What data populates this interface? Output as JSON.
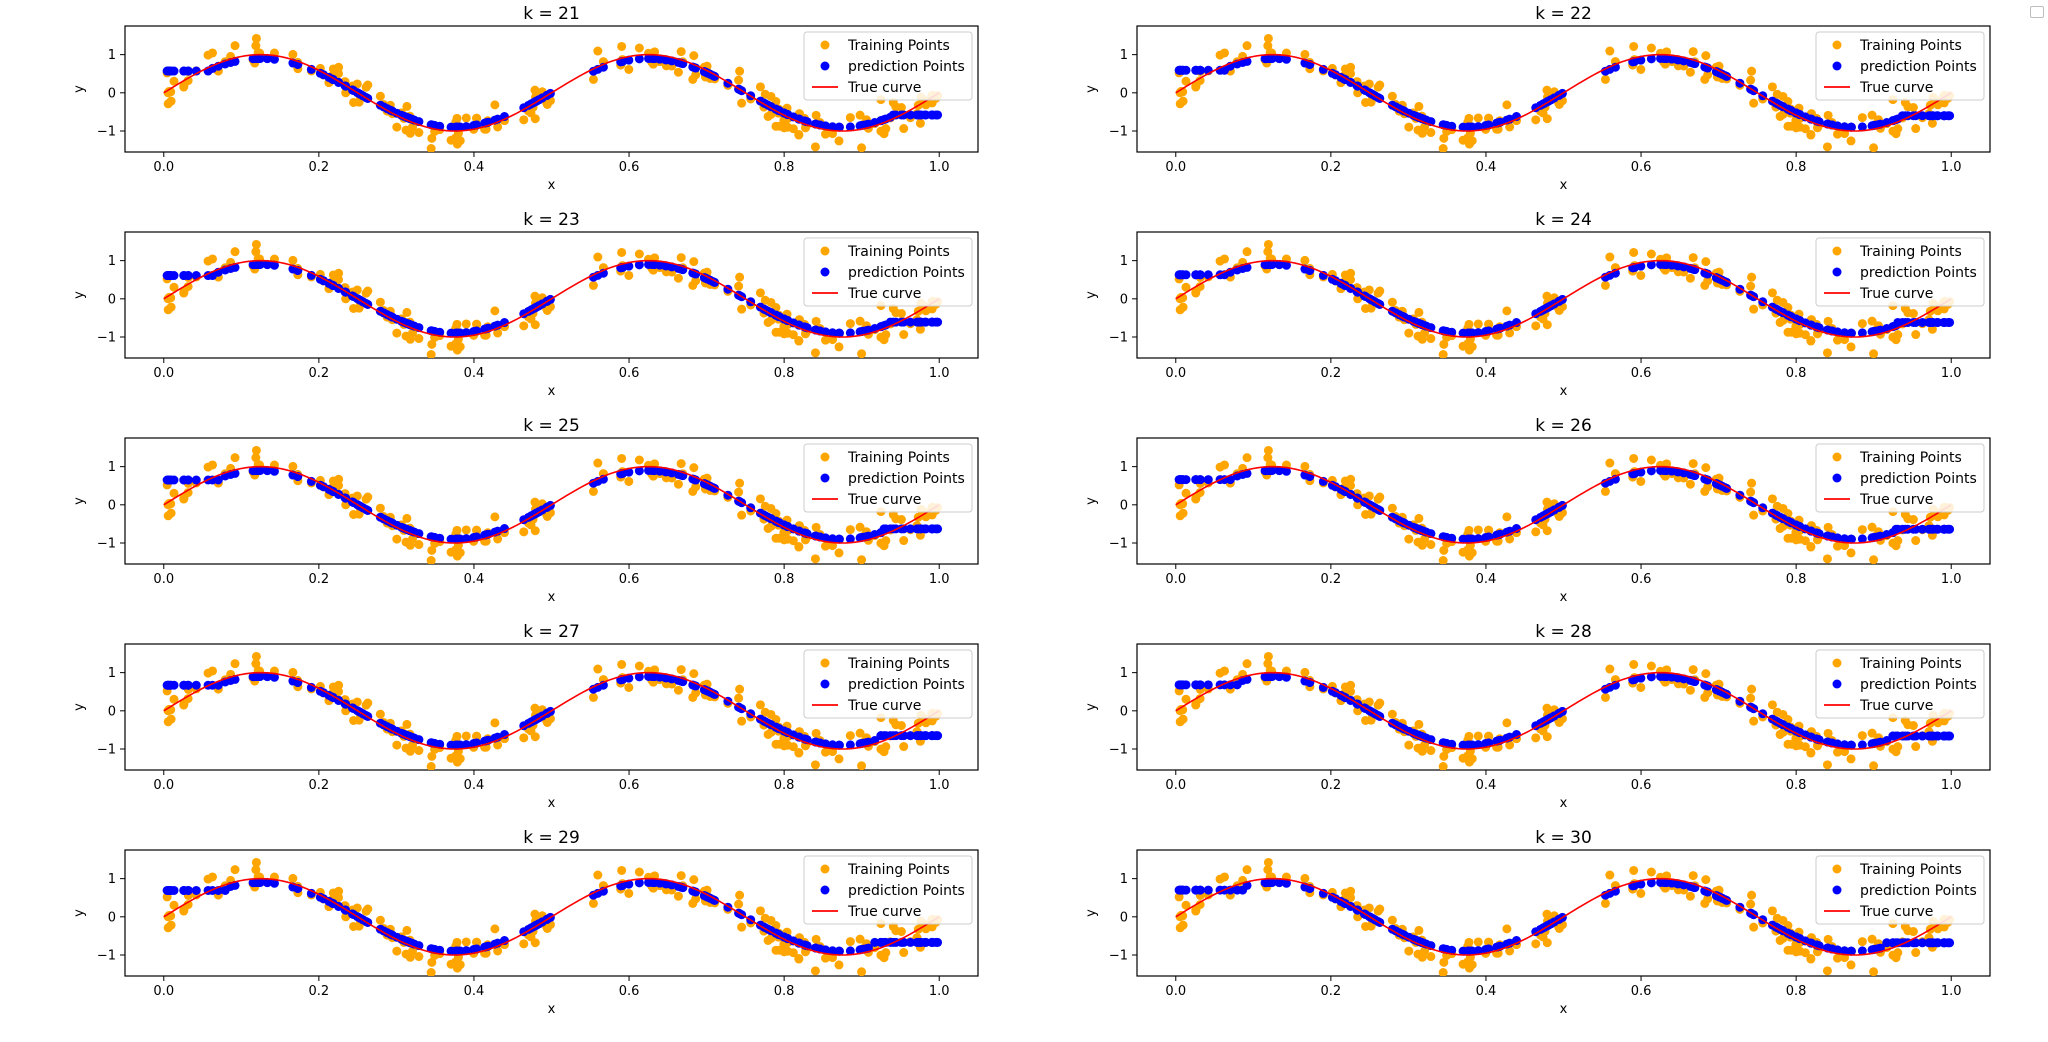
{
  "colors": {
    "training": "#ffa500",
    "prediction": "#0000ff",
    "true_curve": "#ff0000"
  },
  "legend": {
    "training": "Training Points",
    "prediction": "prediction Points",
    "true_curve": "True curve"
  },
  "chart_data": [
    {
      "type": "scatter",
      "title": "k = 21",
      "xlabel": "x",
      "ylabel": "y",
      "xlim": [
        -0.05,
        1.05
      ],
      "ylim": [
        -1.55,
        1.75
      ],
      "xticks": [
        "0.0",
        "0.2",
        "0.4",
        "0.6",
        "0.8",
        "1.0"
      ],
      "yticks": [
        "-1",
        "0",
        "1"
      ],
      "legend_position": "upper right",
      "pred_plateau": [
        0.57,
        -0.58
      ],
      "series": [
        {
          "name": "Training Points"
        },
        {
          "name": "prediction Points"
        },
        {
          "name": "True curve"
        }
      ]
    },
    {
      "type": "scatter",
      "title": "k = 22",
      "xlabel": "x",
      "ylabel": "y",
      "xlim": [
        -0.05,
        1.05
      ],
      "ylim": [
        -1.55,
        1.75
      ],
      "xticks": [
        "0.0",
        "0.2",
        "0.4",
        "0.6",
        "0.8",
        "1.0"
      ],
      "yticks": [
        "-1",
        "0",
        "1"
      ],
      "legend_position": "upper right",
      "pred_plateau": [
        0.59,
        -0.6
      ],
      "series": [
        {
          "name": "Training Points"
        },
        {
          "name": "prediction Points"
        },
        {
          "name": "True curve"
        }
      ]
    },
    {
      "type": "scatter",
      "title": "k = 23",
      "xlabel": "x",
      "ylabel": "y",
      "xlim": [
        -0.05,
        1.05
      ],
      "ylim": [
        -1.55,
        1.75
      ],
      "xticks": [
        "0.0",
        "0.2",
        "0.4",
        "0.6",
        "0.8",
        "1.0"
      ],
      "yticks": [
        "-1",
        "0",
        "1"
      ],
      "legend_position": "upper right",
      "pred_plateau": [
        0.61,
        -0.61
      ],
      "series": [
        {
          "name": "Training Points"
        },
        {
          "name": "prediction Points"
        },
        {
          "name": "True curve"
        }
      ]
    },
    {
      "type": "scatter",
      "title": "k = 24",
      "xlabel": "x",
      "ylabel": "y",
      "xlim": [
        -0.05,
        1.05
      ],
      "ylim": [
        -1.55,
        1.75
      ],
      "xticks": [
        "0.0",
        "0.2",
        "0.4",
        "0.6",
        "0.8",
        "1.0"
      ],
      "yticks": [
        "-1",
        "0",
        "1"
      ],
      "legend_position": "upper right",
      "pred_plateau": [
        0.63,
        -0.62
      ],
      "series": [
        {
          "name": "Training Points"
        },
        {
          "name": "prediction Points"
        },
        {
          "name": "True curve"
        }
      ]
    },
    {
      "type": "scatter",
      "title": "k = 25",
      "xlabel": "x",
      "ylabel": "y",
      "xlim": [
        -0.05,
        1.05
      ],
      "ylim": [
        -1.55,
        1.75
      ],
      "xticks": [
        "0.0",
        "0.2",
        "0.4",
        "0.6",
        "0.8",
        "1.0"
      ],
      "yticks": [
        "-1",
        "0",
        "1"
      ],
      "legend_position": "upper right",
      "pred_plateau": [
        0.65,
        -0.63
      ],
      "series": [
        {
          "name": "Training Points"
        },
        {
          "name": "prediction Points"
        },
        {
          "name": "True curve"
        }
      ]
    },
    {
      "type": "scatter",
      "title": "k = 26",
      "xlabel": "x",
      "ylabel": "y",
      "xlim": [
        -0.05,
        1.05
      ],
      "ylim": [
        -1.55,
        1.75
      ],
      "xticks": [
        "0.0",
        "0.2",
        "0.4",
        "0.6",
        "0.8",
        "1.0"
      ],
      "yticks": [
        "-1",
        "0",
        "1"
      ],
      "legend_position": "upper right",
      "pred_plateau": [
        0.66,
        -0.64
      ],
      "series": [
        {
          "name": "Training Points"
        },
        {
          "name": "prediction Points"
        },
        {
          "name": "True curve"
        }
      ]
    },
    {
      "type": "scatter",
      "title": "k = 27",
      "xlabel": "x",
      "ylabel": "y",
      "xlim": [
        -0.05,
        1.05
      ],
      "ylim": [
        -1.55,
        1.75
      ],
      "xticks": [
        "0.0",
        "0.2",
        "0.4",
        "0.6",
        "0.8",
        "1.0"
      ],
      "yticks": [
        "-1",
        "0",
        "1"
      ],
      "legend_position": "upper right",
      "pred_plateau": [
        0.67,
        -0.65
      ],
      "series": [
        {
          "name": "Training Points"
        },
        {
          "name": "prediction Points"
        },
        {
          "name": "True curve"
        }
      ]
    },
    {
      "type": "scatter",
      "title": "k = 28",
      "xlabel": "x",
      "ylabel": "y",
      "xlim": [
        -0.05,
        1.05
      ],
      "ylim": [
        -1.55,
        1.75
      ],
      "xticks": [
        "0.0",
        "0.2",
        "0.4",
        "0.6",
        "0.8",
        "1.0"
      ],
      "yticks": [
        "-1",
        "0",
        "1"
      ],
      "legend_position": "upper right",
      "pred_plateau": [
        0.68,
        -0.66
      ],
      "series": [
        {
          "name": "Training Points"
        },
        {
          "name": "prediction Points"
        },
        {
          "name": "True curve"
        }
      ]
    },
    {
      "type": "scatter",
      "title": "k = 29",
      "xlabel": "x",
      "ylabel": "y",
      "xlim": [
        -0.05,
        1.05
      ],
      "ylim": [
        -1.55,
        1.75
      ],
      "xticks": [
        "0.0",
        "0.2",
        "0.4",
        "0.6",
        "0.8",
        "1.0"
      ],
      "yticks": [
        "-1",
        "0",
        "1"
      ],
      "legend_position": "upper right",
      "pred_plateau": [
        0.69,
        -0.67
      ],
      "series": [
        {
          "name": "Training Points"
        },
        {
          "name": "prediction Points"
        },
        {
          "name": "True curve"
        }
      ]
    },
    {
      "type": "scatter",
      "title": "k = 30",
      "xlabel": "x",
      "ylabel": "y",
      "xlim": [
        -0.05,
        1.05
      ],
      "ylim": [
        -1.55,
        1.75
      ],
      "xticks": [
        "0.0",
        "0.2",
        "0.4",
        "0.6",
        "0.8",
        "1.0"
      ],
      "yticks": [
        "-1",
        "0",
        "1"
      ],
      "legend_position": "upper right",
      "pred_plateau": [
        0.7,
        -0.68
      ],
      "series": [
        {
          "name": "Training Points"
        },
        {
          "name": "prediction Points"
        },
        {
          "name": "True curve"
        }
      ]
    }
  ]
}
